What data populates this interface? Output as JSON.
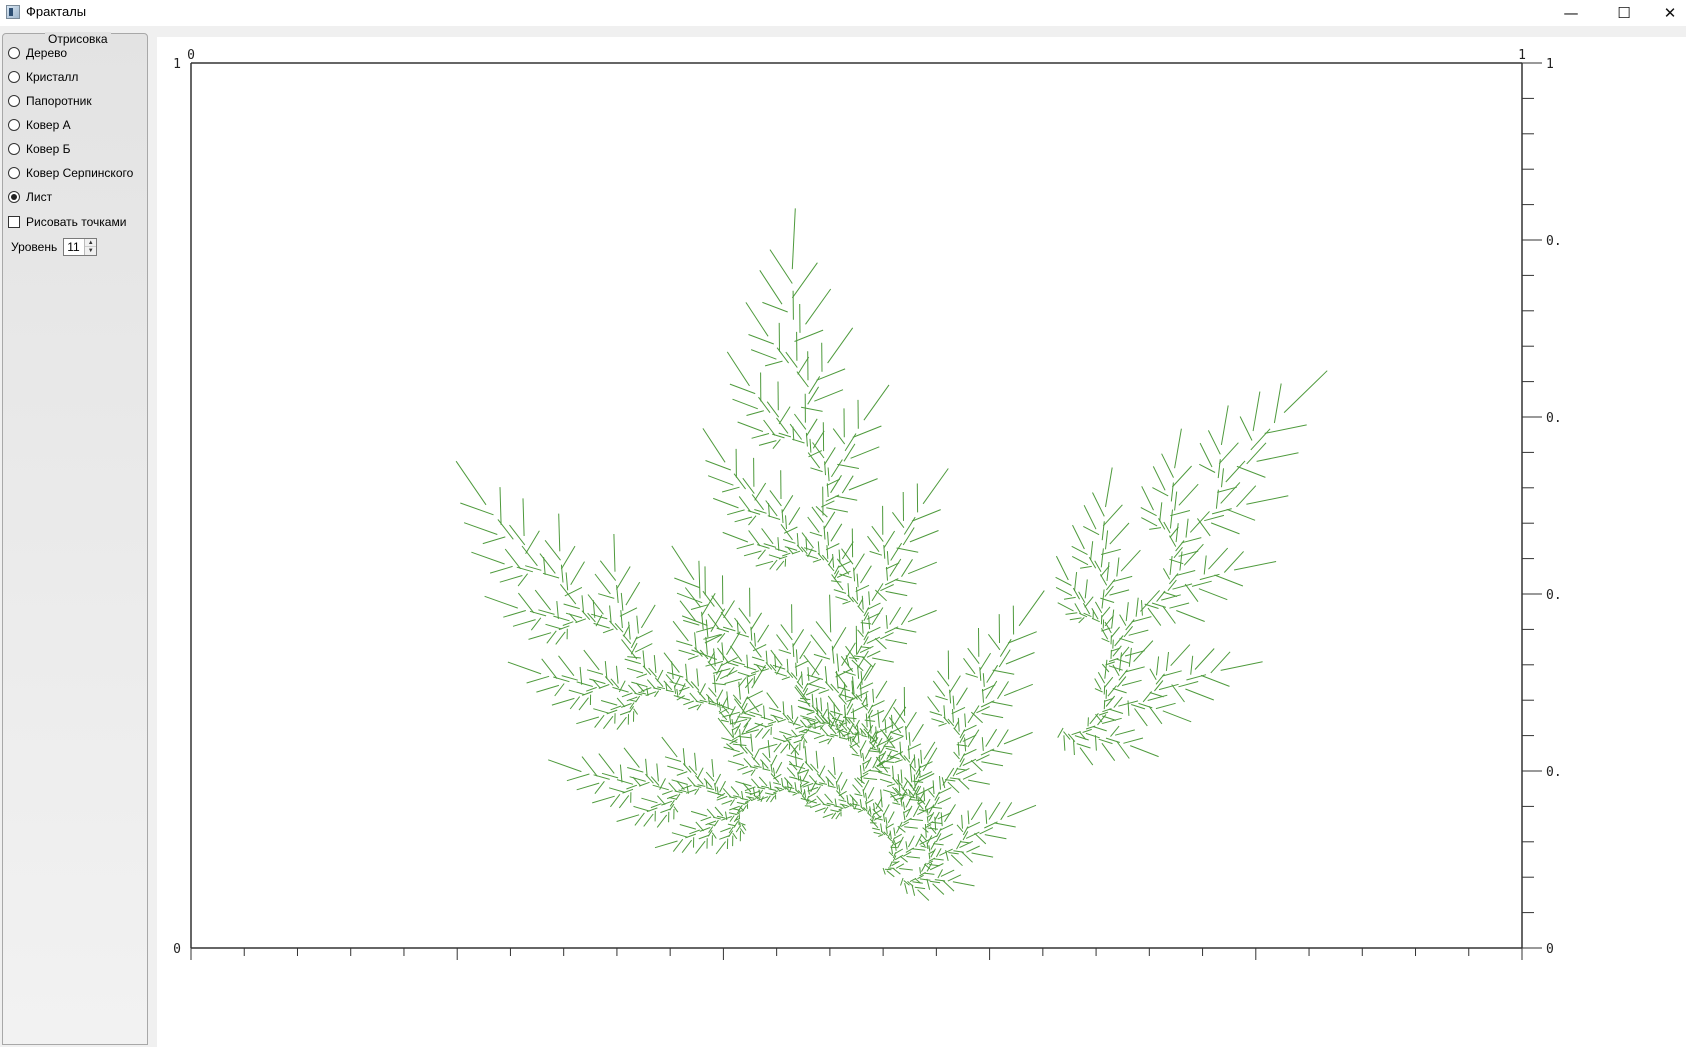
{
  "window": {
    "title": "Фракталы",
    "controls": {
      "minimize": "—",
      "maximize": "☐",
      "close": "✕"
    }
  },
  "sidebar": {
    "group_title": "Отрисовка",
    "options": [
      {
        "label": "Дерево",
        "checked": false
      },
      {
        "label": "Кристалл",
        "checked": false
      },
      {
        "label": "Папоротник",
        "checked": false
      },
      {
        "label": "Ковер А",
        "checked": false
      },
      {
        "label": "Ковер Б",
        "checked": false
      },
      {
        "label": "Ковер Серпинского",
        "checked": false
      },
      {
        "label": "Лист",
        "checked": true
      }
    ],
    "draw_points": {
      "label": "Рисовать точками",
      "checked": false
    },
    "level": {
      "label": "Уровень",
      "value": "11"
    }
  },
  "plot": {
    "fractal": "Лист",
    "stroke_color": "#4e9a3c",
    "x_axis": {
      "range": [
        0,
        1
      ],
      "tick_labels": [
        "0",
        "1"
      ]
    },
    "y_axis": {
      "range": [
        0,
        1
      ],
      "left_tick_labels": [
        "1",
        "0"
      ],
      "right_tick_labels": [
        "1",
        "0.",
        "0.",
        "0.",
        "0.",
        "0"
      ]
    }
  }
}
